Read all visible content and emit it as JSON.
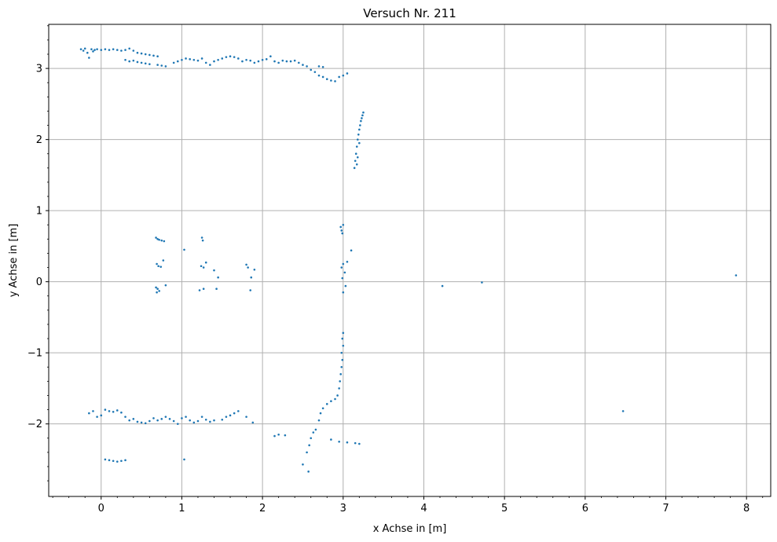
{
  "chart_data": {
    "type": "scatter",
    "title": "Versuch Nr. 211",
    "xlabel": "x Achse in [m]",
    "ylabel": "y Achse in [m]",
    "xlim": [
      -0.65,
      8.3
    ],
    "ylim": [
      -3.02,
      3.62
    ],
    "xticks": [
      0,
      1,
      2,
      3,
      4,
      5,
      6,
      7,
      8
    ],
    "xtick_labels": [
      "0",
      "1",
      "2",
      "3",
      "4",
      "5",
      "6",
      "7",
      "8"
    ],
    "yticks": [
      -2,
      -1,
      0,
      1,
      2,
      3
    ],
    "ytick_labels": [
      "−2",
      "−1",
      "0",
      "1",
      "2",
      "3"
    ],
    "grid": true,
    "minor_ticks": true,
    "marker_color": "#1f77b4",
    "series": [
      {
        "points": [
          [
            -0.25,
            3.27
          ],
          [
            -0.22,
            3.25
          ],
          [
            -0.2,
            3.28
          ],
          [
            -0.17,
            3.22
          ],
          [
            -0.15,
            3.15
          ],
          [
            -0.12,
            3.27
          ],
          [
            -0.1,
            3.24
          ],
          [
            -0.08,
            3.26
          ],
          [
            -0.05,
            3.27
          ],
          [
            0.0,
            3.26
          ],
          [
            0.05,
            3.27
          ],
          [
            0.1,
            3.26
          ],
          [
            0.15,
            3.27
          ],
          [
            0.2,
            3.26
          ],
          [
            0.25,
            3.25
          ],
          [
            0.3,
            3.26
          ],
          [
            0.35,
            3.28
          ],
          [
            0.4,
            3.25
          ],
          [
            0.45,
            3.22
          ],
          [
            0.5,
            3.21
          ],
          [
            0.55,
            3.2
          ],
          [
            0.6,
            3.19
          ],
          [
            0.65,
            3.18
          ],
          [
            0.7,
            3.17
          ],
          [
            0.3,
            3.12
          ],
          [
            0.35,
            3.1
          ],
          [
            0.4,
            3.11
          ],
          [
            0.45,
            3.09
          ],
          [
            0.5,
            3.08
          ],
          [
            0.55,
            3.07
          ],
          [
            0.6,
            3.06
          ],
          [
            0.7,
            3.05
          ],
          [
            0.75,
            3.04
          ],
          [
            0.8,
            3.03
          ],
          [
            0.9,
            3.08
          ],
          [
            0.95,
            3.1
          ],
          [
            1.0,
            3.12
          ],
          [
            1.05,
            3.14
          ],
          [
            1.1,
            3.13
          ],
          [
            1.15,
            3.12
          ],
          [
            1.2,
            3.11
          ],
          [
            1.25,
            3.14
          ],
          [
            1.3,
            3.08
          ],
          [
            1.35,
            3.05
          ],
          [
            1.4,
            3.1
          ],
          [
            1.45,
            3.12
          ],
          [
            1.5,
            3.14
          ],
          [
            1.55,
            3.16
          ],
          [
            1.6,
            3.17
          ],
          [
            1.65,
            3.16
          ],
          [
            1.7,
            3.14
          ],
          [
            1.75,
            3.1
          ],
          [
            1.8,
            3.12
          ],
          [
            1.85,
            3.11
          ],
          [
            1.9,
            3.08
          ],
          [
            1.95,
            3.1
          ],
          [
            2.0,
            3.12
          ],
          [
            2.05,
            3.13
          ],
          [
            2.1,
            3.17
          ],
          [
            2.15,
            3.1
          ],
          [
            2.2,
            3.08
          ],
          [
            2.25,
            3.11
          ],
          [
            2.3,
            3.1
          ],
          [
            2.35,
            3.1
          ],
          [
            2.4,
            3.11
          ],
          [
            2.45,
            3.08
          ],
          [
            2.5,
            3.05
          ],
          [
            2.55,
            3.03
          ],
          [
            2.6,
            2.98
          ],
          [
            2.65,
            2.95
          ],
          [
            2.7,
            2.9
          ],
          [
            2.75,
            2.88
          ],
          [
            2.8,
            2.85
          ],
          [
            2.85,
            2.83
          ],
          [
            2.9,
            2.82
          ],
          [
            2.95,
            2.88
          ],
          [
            3.0,
            2.9
          ],
          [
            3.05,
            2.93
          ],
          [
            2.7,
            3.03
          ],
          [
            2.75,
            3.02
          ],
          [
            3.14,
            1.6
          ],
          [
            3.15,
            1.7
          ],
          [
            3.16,
            1.8
          ],
          [
            3.17,
            1.9
          ],
          [
            3.18,
            2.0
          ],
          [
            3.19,
            2.07
          ],
          [
            3.2,
            2.14
          ],
          [
            3.21,
            2.2
          ],
          [
            3.22,
            2.26
          ],
          [
            3.23,
            2.3
          ],
          [
            3.24,
            2.34
          ],
          [
            3.25,
            2.38
          ],
          [
            3.17,
            1.65
          ],
          [
            3.18,
            1.75
          ],
          [
            3.2,
            1.95
          ],
          [
            0.68,
            0.62
          ],
          [
            0.7,
            0.6
          ],
          [
            0.72,
            0.59
          ],
          [
            0.75,
            0.58
          ],
          [
            0.78,
            0.57
          ],
          [
            0.69,
            0.25
          ],
          [
            0.71,
            0.22
          ],
          [
            0.74,
            0.21
          ],
          [
            0.77,
            0.3
          ],
          [
            0.68,
            -0.08
          ],
          [
            0.7,
            -0.1
          ],
          [
            0.72,
            -0.13
          ],
          [
            0.69,
            -0.15
          ],
          [
            0.8,
            -0.05
          ],
          [
            1.03,
            0.45
          ],
          [
            1.25,
            0.62
          ],
          [
            1.26,
            0.58
          ],
          [
            1.24,
            0.22
          ],
          [
            1.27,
            0.2
          ],
          [
            1.3,
            0.27
          ],
          [
            1.22,
            -0.12
          ],
          [
            1.27,
            -0.1
          ],
          [
            1.4,
            0.16
          ],
          [
            1.43,
            -0.1
          ],
          [
            1.45,
            0.06
          ],
          [
            1.8,
            0.24
          ],
          [
            1.82,
            0.2
          ],
          [
            1.85,
            -0.12
          ],
          [
            1.86,
            0.06
          ],
          [
            1.9,
            0.17
          ],
          [
            2.97,
            0.77
          ],
          [
            2.98,
            0.72
          ],
          [
            3.0,
            0.8
          ],
          [
            2.99,
            0.68
          ],
          [
            3.0,
            0.25
          ],
          [
            2.98,
            0.2
          ],
          [
            3.02,
            0.13
          ],
          [
            2.99,
            0.05
          ],
          [
            3.03,
            -0.06
          ],
          [
            3.0,
            -0.15
          ],
          [
            3.05,
            0.28
          ],
          [
            3.1,
            0.44
          ],
          [
            4.23,
            -0.06
          ],
          [
            4.72,
            -0.01
          ],
          [
            7.87,
            0.09
          ],
          [
            3.0,
            -0.72
          ],
          [
            2.99,
            -0.8
          ],
          [
            3.0,
            -0.9
          ],
          [
            2.98,
            -1.0
          ],
          [
            2.99,
            -1.1
          ],
          [
            2.98,
            -1.2
          ],
          [
            2.97,
            -1.3
          ],
          [
            2.96,
            -1.4
          ],
          [
            2.95,
            -1.5
          ],
          [
            2.93,
            -1.6
          ],
          [
            2.9,
            -1.65
          ],
          [
            2.85,
            -1.68
          ],
          [
            2.8,
            -1.72
          ],
          [
            2.75,
            -1.78
          ],
          [
            2.72,
            -1.85
          ],
          [
            2.7,
            -1.95
          ],
          [
            -0.15,
            -1.85
          ],
          [
            -0.1,
            -1.82
          ],
          [
            -0.05,
            -1.9
          ],
          [
            0.0,
            -1.88
          ],
          [
            0.05,
            -1.8
          ],
          [
            0.1,
            -1.82
          ],
          [
            0.15,
            -1.83
          ],
          [
            0.2,
            -1.81
          ],
          [
            0.25,
            -1.84
          ],
          [
            0.3,
            -1.9
          ],
          [
            0.35,
            -1.95
          ],
          [
            0.4,
            -1.93
          ],
          [
            0.45,
            -1.97
          ],
          [
            0.5,
            -1.98
          ],
          [
            0.55,
            -1.99
          ],
          [
            0.6,
            -1.96
          ],
          [
            0.65,
            -1.92
          ],
          [
            0.7,
            -1.95
          ],
          [
            0.75,
            -1.93
          ],
          [
            0.8,
            -1.9
          ],
          [
            0.85,
            -1.93
          ],
          [
            0.9,
            -1.96
          ],
          [
            0.95,
            -2.0
          ],
          [
            1.0,
            -1.92
          ],
          [
            1.05,
            -1.9
          ],
          [
            1.1,
            -1.95
          ],
          [
            1.15,
            -1.98
          ],
          [
            1.2,
            -1.96
          ],
          [
            1.25,
            -1.9
          ],
          [
            1.3,
            -1.94
          ],
          [
            1.35,
            -1.97
          ],
          [
            1.4,
            -1.95
          ],
          [
            1.5,
            -1.94
          ],
          [
            1.55,
            -1.9
          ],
          [
            1.6,
            -1.88
          ],
          [
            1.65,
            -1.85
          ],
          [
            1.7,
            -1.82
          ],
          [
            1.8,
            -1.9
          ],
          [
            1.88,
            -1.98
          ],
          [
            2.15,
            -2.17
          ],
          [
            2.2,
            -2.15
          ],
          [
            2.28,
            -2.16
          ],
          [
            2.5,
            -2.57
          ],
          [
            2.55,
            -2.4
          ],
          [
            2.58,
            -2.3
          ],
          [
            2.6,
            -2.2
          ],
          [
            2.63,
            -2.12
          ],
          [
            2.66,
            -2.08
          ],
          [
            2.57,
            -2.67
          ],
          [
            2.85,
            -2.22
          ],
          [
            2.95,
            -2.25
          ],
          [
            3.05,
            -2.26
          ],
          [
            3.15,
            -2.27
          ],
          [
            3.2,
            -2.28
          ],
          [
            0.05,
            -2.5
          ],
          [
            0.1,
            -2.51
          ],
          [
            0.15,
            -2.52
          ],
          [
            0.2,
            -2.53
          ],
          [
            0.25,
            -2.52
          ],
          [
            0.3,
            -2.51
          ],
          [
            1.03,
            -2.5
          ],
          [
            6.47,
            -1.82
          ]
        ]
      }
    ]
  }
}
